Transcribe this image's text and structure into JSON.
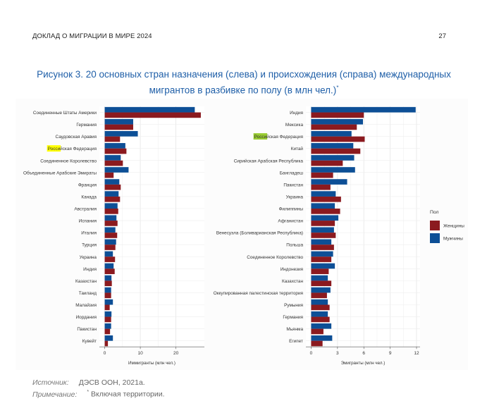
{
  "header": {
    "left": "ДОКЛАД О МИГРАЦИИ В МИРЕ 2024",
    "page_number": "27"
  },
  "title": {
    "main": "Рисунок 3. 20 основных стран назначения (слева) и происхождения (справа) международных мигрантов в разбивке по полу (в млн чел.)",
    "mark": "*"
  },
  "footer": {
    "source_label": "Источник:",
    "source_text": "ДЭСВ ООН, 2021a.",
    "note_label": "Примечание:",
    "note_mark": "*",
    "note_text": " Включая территории."
  },
  "colors": {
    "female": "#8b1a1f",
    "male": "#0d4f96",
    "highlight": "#ffff00",
    "highlight_green": "#9acd32",
    "grid": "#e6e6e6"
  },
  "legend": {
    "title": "Пол",
    "items": [
      "Женщины",
      "Мужчины"
    ]
  },
  "chart_data": [
    {
      "type": "bar",
      "orientation": "horizontal",
      "xlabel": "Иммигранты (млн чел.)",
      "xlim": [
        -1.5,
        28
      ],
      "xticks": [
        0,
        10,
        20
      ],
      "highlight": "Российская Федерация",
      "highlight_chars": 5,
      "highlight_color": "#ffff00",
      "categories": [
        "Соединенные Штаты Америки",
        "Германия",
        "Саудовская Аравия",
        "Российская Федерация",
        "Соединенное Королевство",
        "Объединенные Арабские Эмираты",
        "Франция",
        "Канада",
        "Австралия",
        "Испания",
        "Италия",
        "Турция",
        "Украина",
        "Индия",
        "Казахстан",
        "Таиланд",
        "Малайзия",
        "Иордания",
        "Пакистан",
        "Кувейт"
      ],
      "series": [
        {
          "name": "Мужчины",
          "values": [
            25.3,
            8.0,
            9.3,
            5.8,
            4.5,
            6.7,
            4.1,
            3.9,
            3.6,
            3.3,
            3.0,
            3.2,
            2.3,
            2.5,
            1.9,
            1.8,
            2.3,
            1.9,
            1.8,
            2.3
          ]
        },
        {
          "name": "Женщины",
          "values": [
            27.0,
            8.0,
            4.3,
            6.1,
            5.1,
            2.5,
            4.5,
            4.3,
            3.8,
            3.6,
            3.5,
            3.0,
            2.9,
            2.8,
            2.0,
            1.8,
            1.4,
            1.8,
            1.5,
            0.9
          ]
        }
      ]
    },
    {
      "type": "bar",
      "orientation": "horizontal",
      "xlabel": "Эмигранты (млн чел.)",
      "xlim": [
        -0.6,
        12.4
      ],
      "xticks": [
        0,
        3,
        6,
        9,
        12
      ],
      "highlight": "Российская Федерация",
      "highlight_chars": 5,
      "highlight_color": "#9acd32",
      "categories": [
        "Индия",
        "Мексика",
        "Российская Федерация",
        "Китай",
        "Сирийская Арабская Республика",
        "Бангладеш",
        "Пакистан",
        "Украина",
        "Филиппины",
        "Афганистан",
        "Венесуэла (Боливарианская Республика)",
        "Польша",
        "Соединенное Королевство",
        "Индонезия",
        "Казахстан",
        "Оккупированная палестинская территория",
        "Румыния",
        "Германия",
        "Мьянма",
        "Египет"
      ],
      "series": [
        {
          "name": "Мужчины",
          "values": [
            11.9,
            5.9,
            4.6,
            4.8,
            4.9,
            5.0,
            4.1,
            2.8,
            2.7,
            3.1,
            2.6,
            2.3,
            2.5,
            2.7,
            1.9,
            2.2,
            1.9,
            1.9,
            2.3,
            2.4
          ]
        },
        {
          "name": "Женщины",
          "values": [
            6.0,
            5.2,
            6.1,
            5.6,
            3.6,
            2.5,
            2.2,
            3.4,
            3.3,
            2.7,
            2.8,
            2.6,
            2.3,
            2.0,
            2.3,
            1.8,
            2.1,
            2.1,
            1.4,
            1.3
          ]
        }
      ]
    }
  ]
}
